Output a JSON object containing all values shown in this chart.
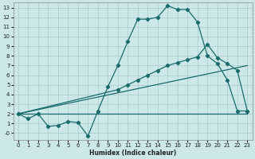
{
  "xlabel": "Humidex (Indice chaleur)",
  "bg_color": "#cce8e8",
  "grid_color": "#aacccc",
  "line_color": "#1a6b6b",
  "xlim": [
    -0.5,
    23.5
  ],
  "ylim": [
    -0.7,
    13.5
  ],
  "xticks": [
    0,
    1,
    2,
    3,
    4,
    5,
    6,
    7,
    8,
    9,
    10,
    11,
    12,
    13,
    14,
    15,
    16,
    17,
    18,
    19,
    20,
    21,
    22,
    23
  ],
  "yticks": [
    0,
    1,
    2,
    3,
    4,
    5,
    6,
    7,
    8,
    9,
    10,
    11,
    12,
    13
  ],
  "ytick_labels": [
    "-0",
    "1",
    "2",
    "3",
    "4",
    "5",
    "6",
    "7",
    "8",
    "9",
    "10",
    "11",
    "12",
    "13"
  ],
  "line1_x": [
    0,
    1,
    2,
    3,
    4,
    5,
    6,
    7,
    8,
    9,
    10,
    11,
    12,
    13,
    14,
    15,
    16,
    17,
    18,
    19,
    20,
    21,
    22,
    23
  ],
  "line1_y": [
    2.0,
    1.5,
    2.0,
    0.7,
    0.8,
    1.2,
    1.1,
    -0.3,
    2.3,
    4.8,
    7.0,
    9.5,
    11.8,
    11.8,
    12.0,
    13.2,
    12.8,
    12.8,
    11.5,
    8.0,
    7.2,
    5.5,
    2.3,
    2.3
  ],
  "line2_x": [
    0,
    23
  ],
  "line2_y": [
    2.0,
    2.0
  ],
  "line3_x": [
    0,
    10,
    11,
    12,
    13,
    14,
    15,
    16,
    17,
    18,
    19,
    20,
    21,
    22,
    23
  ],
  "line3_y": [
    2.0,
    4.5,
    5.0,
    5.5,
    6.0,
    6.5,
    7.0,
    7.3,
    7.6,
    7.9,
    9.2,
    7.8,
    7.2,
    6.5,
    2.3
  ],
  "line4_x": [
    0,
    23
  ],
  "line4_y": [
    2.0,
    7.0
  ]
}
